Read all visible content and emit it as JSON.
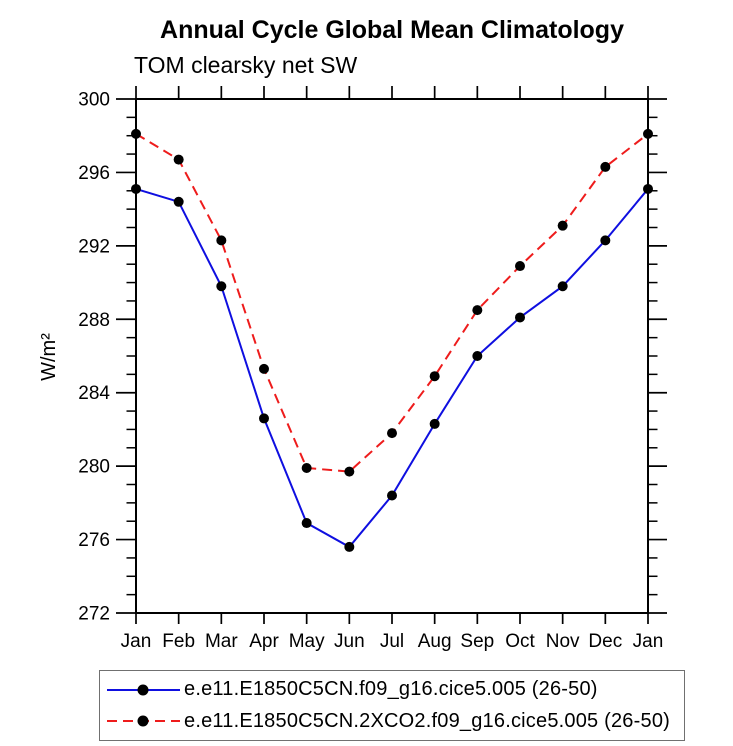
{
  "chart_data": {
    "type": "line",
    "title": "Annual Cycle Global Mean Climatology",
    "subtitle": "TOM clearsky net SW",
    "ylabel": "W/m²",
    "xlabel": "",
    "categories": [
      "Jan",
      "Feb",
      "Mar",
      "Apr",
      "May",
      "Jun",
      "Jul",
      "Aug",
      "Sep",
      "Oct",
      "Nov",
      "Dec",
      "Jan"
    ],
    "ylim": [
      272,
      300
    ],
    "ytick_major_step": 4,
    "ytick_minor_step": 1,
    "grid": false,
    "legend_position": "bottom-box",
    "axis_color": "#000000",
    "series": [
      {
        "name": "e.e11.E1850C5CN.f09_g16.cice5.005 (26-50)",
        "color": "#0f0fe0",
        "line_style": "solid",
        "marker": "filled-circle",
        "marker_color": "#000000",
        "values": [
          295.1,
          294.4,
          289.8,
          282.6,
          276.9,
          275.6,
          278.4,
          282.3,
          286.0,
          288.1,
          289.8,
          292.3,
          295.1
        ]
      },
      {
        "name": "e.e11.E1850C5CN.2XCO2.f09_g16.cice5.005 (26-50)",
        "color": "#ee1c1c",
        "line_style": "dashed",
        "marker": "filled-circle",
        "marker_color": "#000000",
        "values": [
          298.1,
          296.7,
          292.3,
          285.3,
          279.9,
          279.7,
          281.8,
          284.9,
          288.5,
          290.9,
          293.1,
          296.3,
          298.1
        ]
      }
    ]
  }
}
